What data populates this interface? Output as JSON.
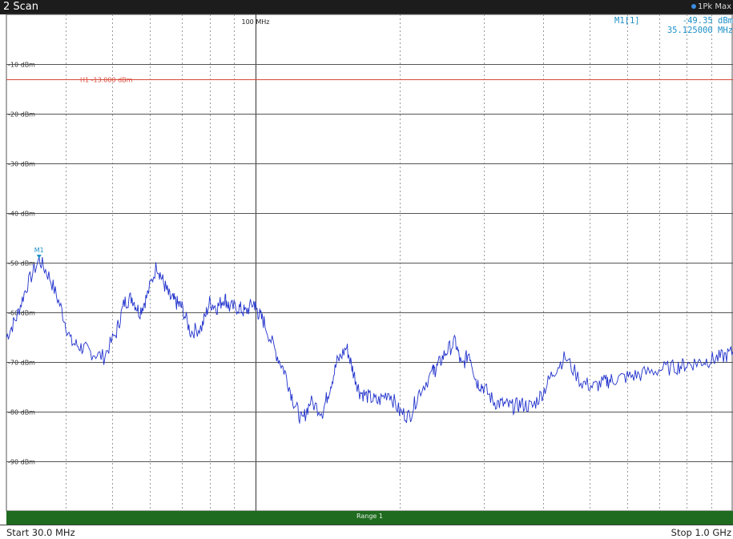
{
  "window": {
    "title": "2 Scan",
    "trace_label": "1Pk Max"
  },
  "marker": {
    "name": "M1[1]",
    "level": "-49.35 dBm",
    "frequency": "35.125000 MHz",
    "label": "M1"
  },
  "colors": {
    "trace": "#2233cc",
    "limit_line": "#d84a3a",
    "marker": "#1e90c8",
    "range_bar": "#1f6b1f",
    "title_bar": "#1c1c1c"
  },
  "chart_data": {
    "type": "line",
    "x_scale": "log",
    "x_unit": "MHz",
    "xlim": [
      30,
      1000
    ],
    "ylim": [
      -100,
      0
    ],
    "y_unit": "dBm",
    "y_tick_labels": [
      "-10 dBm",
      "-20 dBm",
      "-30 dBm",
      "-40 dBm",
      "-50 dBm",
      "-60 dBm",
      "-70 dBm",
      "-80 dBm",
      "-90 dBm"
    ],
    "y_tick_values": [
      -10,
      -20,
      -30,
      -40,
      -50,
      -60,
      -70,
      -80,
      -90
    ],
    "x_tick_label": "100 MHz",
    "x_tick_value": 100,
    "limit_line": {
      "label": "H1 -13.000 dBm",
      "value": -13
    },
    "series": [
      {
        "x": [
          30,
          31.5,
          33,
          35.125,
          37,
          39,
          41,
          43,
          45,
          48,
          51,
          53,
          55,
          57,
          59,
          62,
          64,
          66,
          68,
          70,
          73,
          77,
          80,
          83,
          86,
          88,
          92,
          95,
          99,
          101,
          104,
          110,
          115,
          120,
          125,
          130,
          138,
          143,
          148,
          155,
          160,
          165,
          172,
          180,
          190,
          200,
          210,
          220,
          235,
          240,
          250,
          262,
          270,
          280,
          290,
          300,
          315,
          330,
          345,
          360,
          380,
          400,
          420,
          445,
          480,
          510,
          540,
          560,
          600,
          640,
          700,
          760,
          800,
          850,
          900,
          950,
          1000
        ],
        "y": [
          -65,
          -61,
          -55,
          -49.35,
          -53,
          -59,
          -66,
          -67,
          -68,
          -69,
          -64,
          -58,
          -57,
          -60,
          -57,
          -50.5,
          -54,
          -57,
          -58,
          -59,
          -64,
          -63,
          -58,
          -59,
          -57,
          -59,
          -59,
          -60,
          -58,
          -60,
          -62,
          -68,
          -72,
          -78,
          -82,
          -78,
          -80,
          -75,
          -70,
          -67,
          -72,
          -76,
          -77,
          -78,
          -76,
          -80,
          -81,
          -76,
          -72,
          -71,
          -68,
          -66,
          -71,
          -68,
          -74,
          -75,
          -78,
          -78.5,
          -79,
          -78.5,
          -79,
          -76,
          -72,
          -69,
          -74,
          -75,
          -74,
          -73.5,
          -73,
          -72.5,
          -71.5,
          -71,
          -70.5,
          -70,
          -69.5,
          -69,
          -68
        ]
      }
    ]
  },
  "range_label": "Range 1",
  "footer": {
    "start": "Start 30.0 MHz",
    "stop": "Stop 1.0 GHz"
  }
}
